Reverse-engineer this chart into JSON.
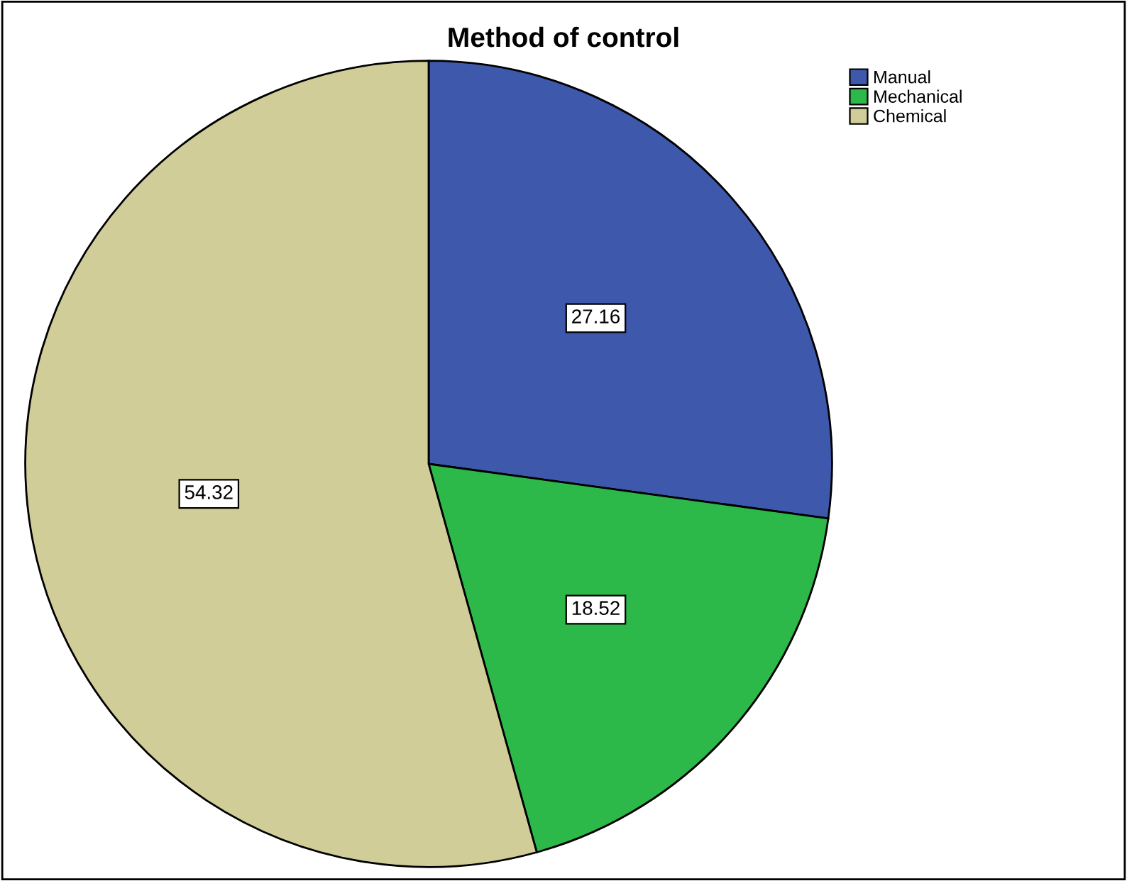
{
  "chart_data": {
    "type": "pie",
    "title": "Method of control",
    "categories": [
      "Manual",
      "Mechanical",
      "Chemical"
    ],
    "values": [
      27.16,
      18.52,
      54.32
    ],
    "colors": [
      "#3e58ac",
      "#2db84a",
      "#d1cd98"
    ],
    "data_labels": true,
    "legend": "top right"
  }
}
